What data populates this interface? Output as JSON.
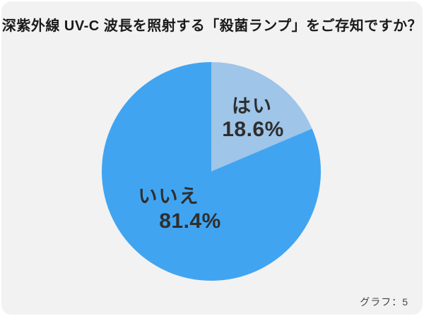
{
  "title": "深紫外線 UV-C 波長を照射する「殺菌ランプ」をご存知ですか？",
  "footer": {
    "caption": "グラフ：5"
  },
  "colors": {
    "page_background": "#ffffff",
    "card_background": "#f2f2f2",
    "title_text": "#1a1a1a",
    "label_text": "#2e2e2e",
    "caption_text": "#444444",
    "slice_yes": "#9fc5e8",
    "slice_no": "#41a4f1"
  },
  "chart_data": {
    "type": "pie",
    "title": "深紫外線 UV-C 波長を照射する「殺菌ランプ」をご存知ですか？",
    "categories": [
      "はい",
      "いいえ"
    ],
    "values": [
      18.6,
      81.4
    ],
    "display_values": [
      "18.6%",
      "81.4%"
    ],
    "unit": "%",
    "colors": [
      "#9fc5e8",
      "#41a4f1"
    ],
    "start_angle": "12 o'clock",
    "direction": "clockwise",
    "legend_position": "none",
    "labels_position": "inside"
  }
}
